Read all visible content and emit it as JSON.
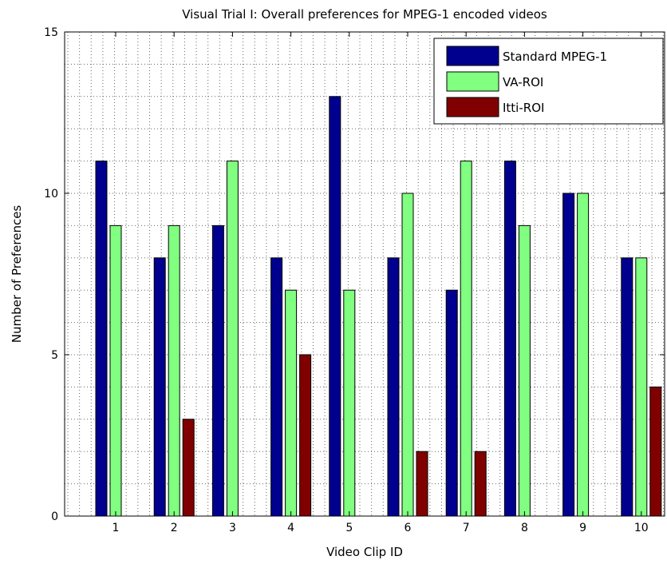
{
  "chart_data": {
    "type": "bar",
    "title": "Visual Trial I: Overall preferences for MPEG-1 encoded videos",
    "xlabel": "Video Clip ID",
    "ylabel": "Number of Preferences",
    "categories": [
      "1",
      "2",
      "3",
      "4",
      "5",
      "6",
      "7",
      "8",
      "9",
      "10"
    ],
    "series": [
      {
        "name": "Standard MPEG-1",
        "color": "#00008f",
        "values": [
          11,
          8,
          9,
          8,
          13,
          8,
          7,
          11,
          10,
          8
        ]
      },
      {
        "name": "VA-ROI",
        "color": "#80ff80",
        "values": [
          9,
          9,
          11,
          7,
          7,
          10,
          11,
          9,
          10,
          8
        ]
      },
      {
        "name": "Itti-ROI",
        "color": "#800000",
        "values": [
          0,
          3,
          0,
          5,
          0,
          2,
          2,
          0,
          0,
          4
        ]
      }
    ],
    "ylim": [
      0,
      15
    ],
    "yticks": [
      0,
      5,
      10,
      15
    ],
    "grid": true,
    "legend_position": "top-right"
  }
}
